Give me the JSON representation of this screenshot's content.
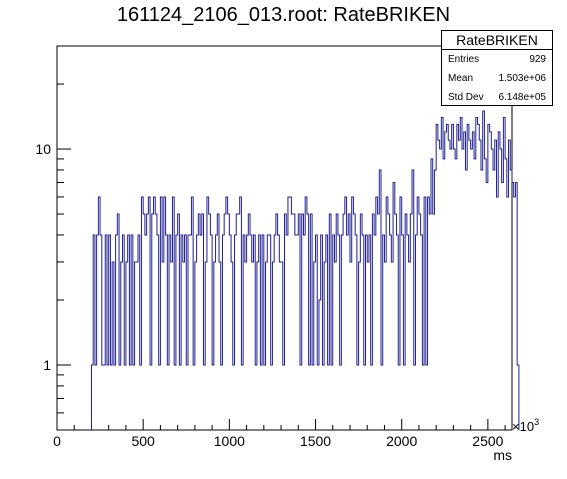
{
  "title": "161124_2106_013.root: RateBRIKEN",
  "stats": {
    "name": "RateBRIKEN",
    "rows": [
      {
        "label": "Entries",
        "value": "929"
      },
      {
        "label": "Mean",
        "value": "1.503e+06"
      },
      {
        "label": "Std Dev",
        "value": "6.148e+05"
      }
    ]
  },
  "chart_data": {
    "type": "histogram",
    "xlabel": "ms",
    "x_exponent_label": "×10",
    "x_exponent": "3",
    "xlim": [
      0,
      2640
    ],
    "ylim": [
      0.5,
      30
    ],
    "yscale": "log",
    "line_color": "#1f1f8f",
    "xticks": [
      0,
      500,
      1000,
      1500,
      2000,
      2500
    ],
    "xtick_labels": [
      "0",
      "500",
      "1000",
      "1500",
      "2000",
      "2500"
    ],
    "yticks": [
      1,
      10
    ],
    "ytick_labels": [
      "1",
      "10"
    ],
    "bin_width": 10,
    "x_start": 200,
    "values": [
      1,
      4,
      1,
      4,
      6,
      4,
      1,
      1,
      4,
      1,
      4,
      1,
      3,
      1,
      4,
      5,
      1,
      3,
      4,
      1,
      3,
      4,
      1,
      4,
      1,
      3,
      3,
      4,
      1,
      6,
      5,
      4,
      5,
      6,
      1,
      5,
      6,
      5,
      4,
      1,
      6,
      3,
      6,
      4,
      1,
      4,
      3,
      6,
      1,
      4,
      5,
      1,
      4,
      3,
      4,
      1,
      4,
      4,
      6,
      1,
      3,
      4,
      5,
      4,
      5,
      1,
      3,
      6,
      5,
      4,
      1,
      3,
      4,
      5,
      3,
      1,
      4,
      5,
      6,
      5,
      4,
      3,
      1,
      4,
      5,
      5,
      6,
      1,
      4,
      3,
      4,
      5,
      4,
      3,
      4,
      1,
      3,
      4,
      1,
      4,
      1,
      3,
      4,
      4,
      1,
      3,
      4,
      5,
      4,
      3,
      3,
      1,
      5,
      4,
      6,
      6,
      5,
      5,
      4,
      4,
      5,
      1,
      5,
      4,
      6,
      5,
      1,
      5,
      1,
      3,
      4,
      1,
      2,
      4,
      1,
      3,
      4,
      1,
      5,
      1,
      4,
      3,
      5,
      4,
      1,
      4,
      5,
      6,
      4,
      5,
      3,
      6,
      5,
      4,
      1,
      3,
      5,
      4,
      1,
      4,
      3,
      4,
      1,
      5,
      4,
      6,
      5,
      8,
      1,
      4,
      3,
      6,
      5,
      4,
      3,
      7,
      5,
      4,
      1,
      6,
      4,
      1,
      5,
      4,
      3,
      5,
      8,
      1,
      4,
      6,
      5,
      4,
      1,
      6,
      1,
      6,
      5,
      9,
      5,
      8,
      13,
      11,
      10,
      14,
      9,
      12,
      13,
      11,
      10,
      13,
      10,
      9,
      13,
      11,
      14,
      10,
      12,
      8,
      13,
      11,
      10,
      12,
      9,
      14,
      13,
      11,
      8,
      15,
      9,
      7,
      13,
      12,
      10,
      8,
      11,
      6,
      12,
      10,
      7,
      14,
      9,
      6,
      11,
      8,
      7,
      6,
      7,
      1
    ]
  }
}
